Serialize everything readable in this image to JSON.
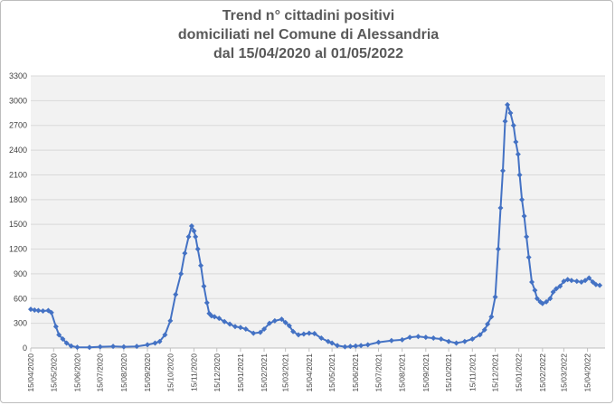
{
  "chart_data": {
    "type": "line",
    "title_lines": [
      "Trend n° cittadini positivi",
      "domiciliati nel Comune di Alessandria",
      "dal 15/04/2020 al 01/05/2022"
    ],
    "xlabel": "",
    "ylabel": "",
    "ylim": [
      0,
      3300
    ],
    "yticks": [
      0,
      300,
      600,
      900,
      1200,
      1500,
      1800,
      2100,
      2400,
      2700,
      3000,
      3300
    ],
    "x_tick_labels": [
      "15/04/2020",
      "15/05/2020",
      "15/06/2020",
      "15/07/2020",
      "15/08/2020",
      "15/09/2020",
      "15/10/2020",
      "15/11/2020",
      "15/12/2020",
      "15/01/2021",
      "15/02/2021",
      "15/03/2021",
      "15/04/2021",
      "15/05/2021",
      "15/06/2021",
      "15/07/2021",
      "15/08/2021",
      "15/09/2021",
      "15/10/2021",
      "15/11/2021",
      "15/12/2021",
      "15/01/2022",
      "15/02/2022",
      "15/03/2022",
      "15/04/2022"
    ],
    "grid": "horizontal",
    "legend": "none",
    "colors": {
      "line": "#4472c4",
      "grid": "#d9d9d9",
      "plot_bg": "#f2f2f2"
    },
    "series": [
      {
        "x": [
          "15/04/2020",
          "20/04/2020",
          "25/04/2020",
          "01/05/2020",
          "08/05/2020",
          "12/05/2020",
          "18/05/2020",
          "22/05/2020",
          "27/05/2020",
          "01/06/2020",
          "07/06/2020",
          "15/06/2020",
          "01/07/2020",
          "15/07/2020",
          "01/08/2020",
          "15/08/2020",
          "01/09/2020",
          "15/09/2020",
          "25/09/2020",
          "01/10/2020",
          "08/10/2020",
          "15/10/2020",
          "22/10/2020",
          "29/10/2020",
          "03/11/2020",
          "08/11/2020",
          "12/11/2020",
          "15/11/2020",
          "17/11/2020",
          "20/11/2020",
          "24/11/2020",
          "28/11/2020",
          "02/12/2020",
          "05/12/2020",
          "08/12/2020",
          "12/12/2020",
          "18/12/2020",
          "25/12/2020",
          "01/01/2021",
          "08/01/2021",
          "15/01/2021",
          "22/01/2021",
          "01/02/2021",
          "10/02/2021",
          "15/02/2021",
          "22/02/2021",
          "01/03/2021",
          "10/03/2021",
          "15/03/2021",
          "20/03/2021",
          "25/03/2021",
          "01/04/2021",
          "08/04/2021",
          "15/04/2021",
          "22/04/2021",
          "01/05/2021",
          "10/05/2021",
          "15/05/2021",
          "22/05/2021",
          "01/06/2021",
          "08/06/2021",
          "15/06/2021",
          "22/06/2021",
          "01/07/2021",
          "15/07/2021",
          "01/08/2021",
          "15/08/2021",
          "25/08/2021",
          "05/09/2021",
          "15/09/2021",
          "25/09/2021",
          "05/10/2021",
          "15/10/2021",
          "25/10/2021",
          "05/11/2021",
          "15/11/2021",
          "25/11/2021",
          "01/12/2021",
          "05/12/2021",
          "10/12/2021",
          "15/12/2021",
          "19/12/2021",
          "22/12/2021",
          "25/12/2021",
          "28/12/2021",
          "31/12/2021",
          "04/01/2022",
          "08/01/2022",
          "11/01/2022",
          "14/01/2022",
          "16/01/2022",
          "19/01/2022",
          "22/01/2022",
          "25/01/2022",
          "28/01/2022",
          "01/02/2022",
          "05/02/2022",
          "08/02/2022",
          "12/02/2022",
          "15/02/2022",
          "20/02/2022",
          "25/02/2022",
          "01/03/2022",
          "05/03/2022",
          "10/03/2022",
          "15/03/2022",
          "20/03/2022",
          "25/03/2022",
          "01/04/2022",
          "07/04/2022",
          "12/04/2022",
          "17/04/2022",
          "22/04/2022",
          "26/04/2022",
          "01/05/2022"
        ],
        "y": [
          470,
          460,
          455,
          450,
          455,
          430,
          260,
          160,
          110,
          60,
          25,
          10,
          8,
          15,
          20,
          15,
          20,
          40,
          60,
          80,
          160,
          330,
          650,
          900,
          1150,
          1350,
          1480,
          1420,
          1350,
          1200,
          1000,
          750,
          550,
          420,
          390,
          380,
          360,
          320,
          290,
          260,
          250,
          230,
          180,
          190,
          230,
          300,
          330,
          350,
          310,
          270,
          200,
          160,
          170,
          180,
          175,
          120,
          80,
          60,
          30,
          15,
          20,
          25,
          30,
          40,
          70,
          90,
          100,
          130,
          140,
          130,
          120,
          110,
          80,
          60,
          80,
          110,
          160,
          220,
          290,
          380,
          620,
          1200,
          1700,
          2150,
          2750,
          2950,
          2850,
          2700,
          2500,
          2350,
          2100,
          1800,
          1600,
          1350,
          1100,
          800,
          700,
          600,
          560,
          540,
          560,
          600,
          680,
          720,
          750,
          810,
          830,
          820,
          810,
          800,
          820,
          850,
          800,
          770,
          760
        ]
      }
    ]
  }
}
